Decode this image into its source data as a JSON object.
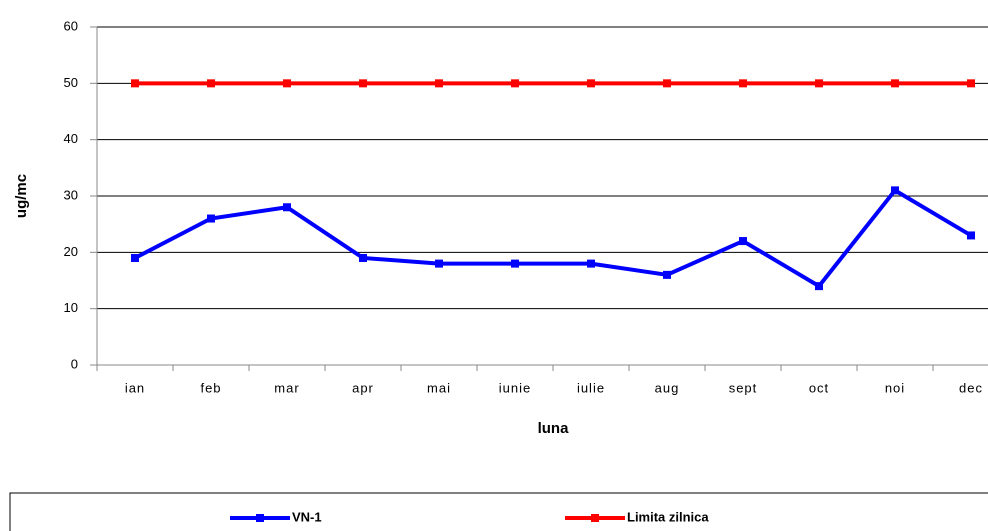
{
  "chart_data": {
    "type": "line",
    "x_label": "luna",
    "y_label": "ug/mc",
    "categories": [
      "ian",
      "feb",
      "mar",
      "apr",
      "mai",
      "iunie",
      "iulie",
      "aug",
      "sept",
      "oct",
      "noi",
      "dec"
    ],
    "series": [
      {
        "name": "VN-1",
        "color": "#0000ff",
        "values": [
          19,
          26,
          28,
          19,
          18,
          18,
          18,
          16,
          22,
          14,
          31,
          23
        ]
      },
      {
        "name": "Limita zilnica",
        "color": "#ff0000",
        "values": [
          50,
          50,
          50,
          50,
          50,
          50,
          50,
          50,
          50,
          50,
          50,
          50
        ]
      }
    ],
    "ylim": [
      0,
      60
    ],
    "yticks": [
      0,
      10,
      20,
      30,
      40,
      50,
      60
    ],
    "grid": true,
    "legend": "bottom"
  }
}
